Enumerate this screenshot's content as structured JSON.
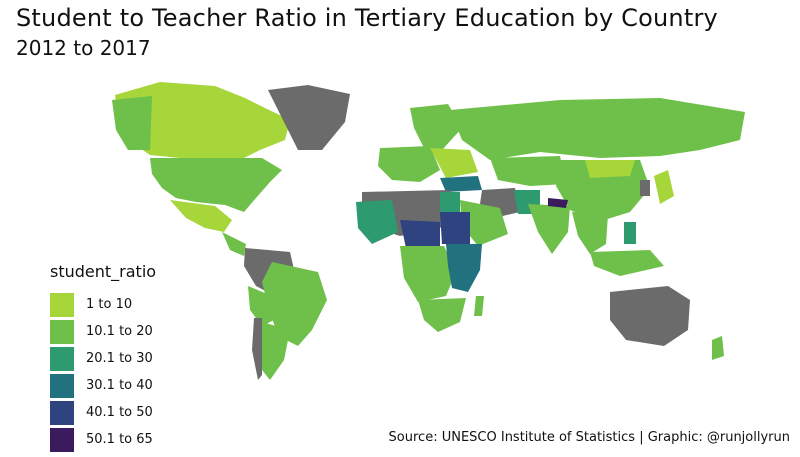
{
  "title": "Student to Teacher Ratio in Tertiary Education by Country",
  "subtitle": "2012 to 2017",
  "caption": "Source: UNESCO Institute of Statistics | Graphic: @runjollyrun",
  "legend": {
    "title": "student_ratio",
    "items": [
      {
        "label": "1 to 10",
        "color": "#a6d63a"
      },
      {
        "label": "10.1 to 20",
        "color": "#6fc04a"
      },
      {
        "label": "20.1 to 30",
        "color": "#2e9a6f"
      },
      {
        "label": "30.1 to 40",
        "color": "#22717f"
      },
      {
        "label": "40.1 to 50",
        "color": "#2e437f"
      },
      {
        "label": "50.1 to 65",
        "color": "#3b1b5e"
      }
    ]
  },
  "colors": {
    "no_data": "#6b6b6b"
  }
}
